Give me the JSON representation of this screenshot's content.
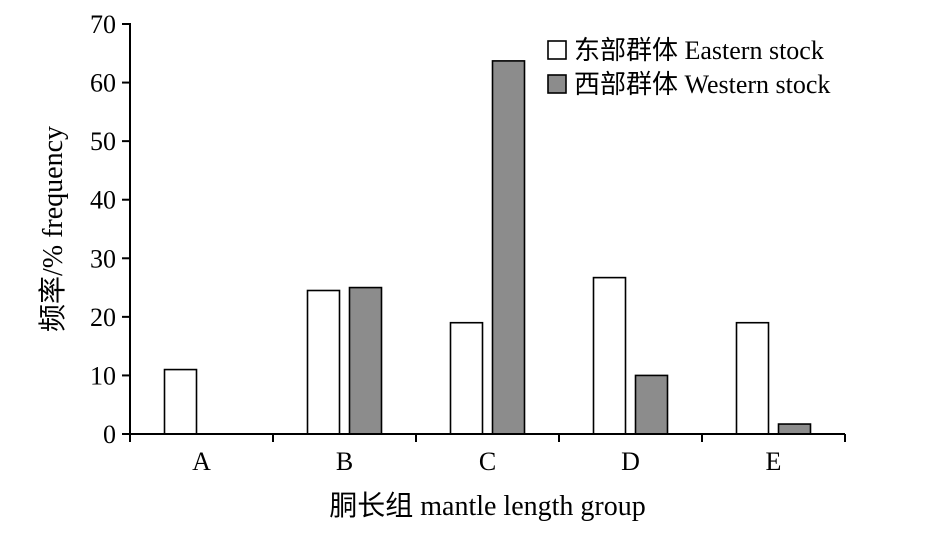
{
  "chart_data": {
    "type": "bar",
    "categories": [
      "A",
      "B",
      "C",
      "D",
      "E"
    ],
    "series": [
      {
        "name": "东部群体 Eastern stock",
        "values": [
          11,
          24.5,
          19,
          26.7,
          19
        ],
        "color": "#ffffff"
      },
      {
        "name": "西部群体 Western stock",
        "values": [
          0,
          25,
          63.7,
          10,
          1.7
        ],
        "color": "#8c8c8c"
      }
    ],
    "xlabel": "胴长组 mantle length group",
    "ylabel": "频率/% frequency",
    "ylim": [
      0,
      70
    ],
    "yticks": [
      0,
      10,
      20,
      30,
      40,
      50,
      60,
      70
    ],
    "grid": false,
    "legend_position": "top-right"
  }
}
